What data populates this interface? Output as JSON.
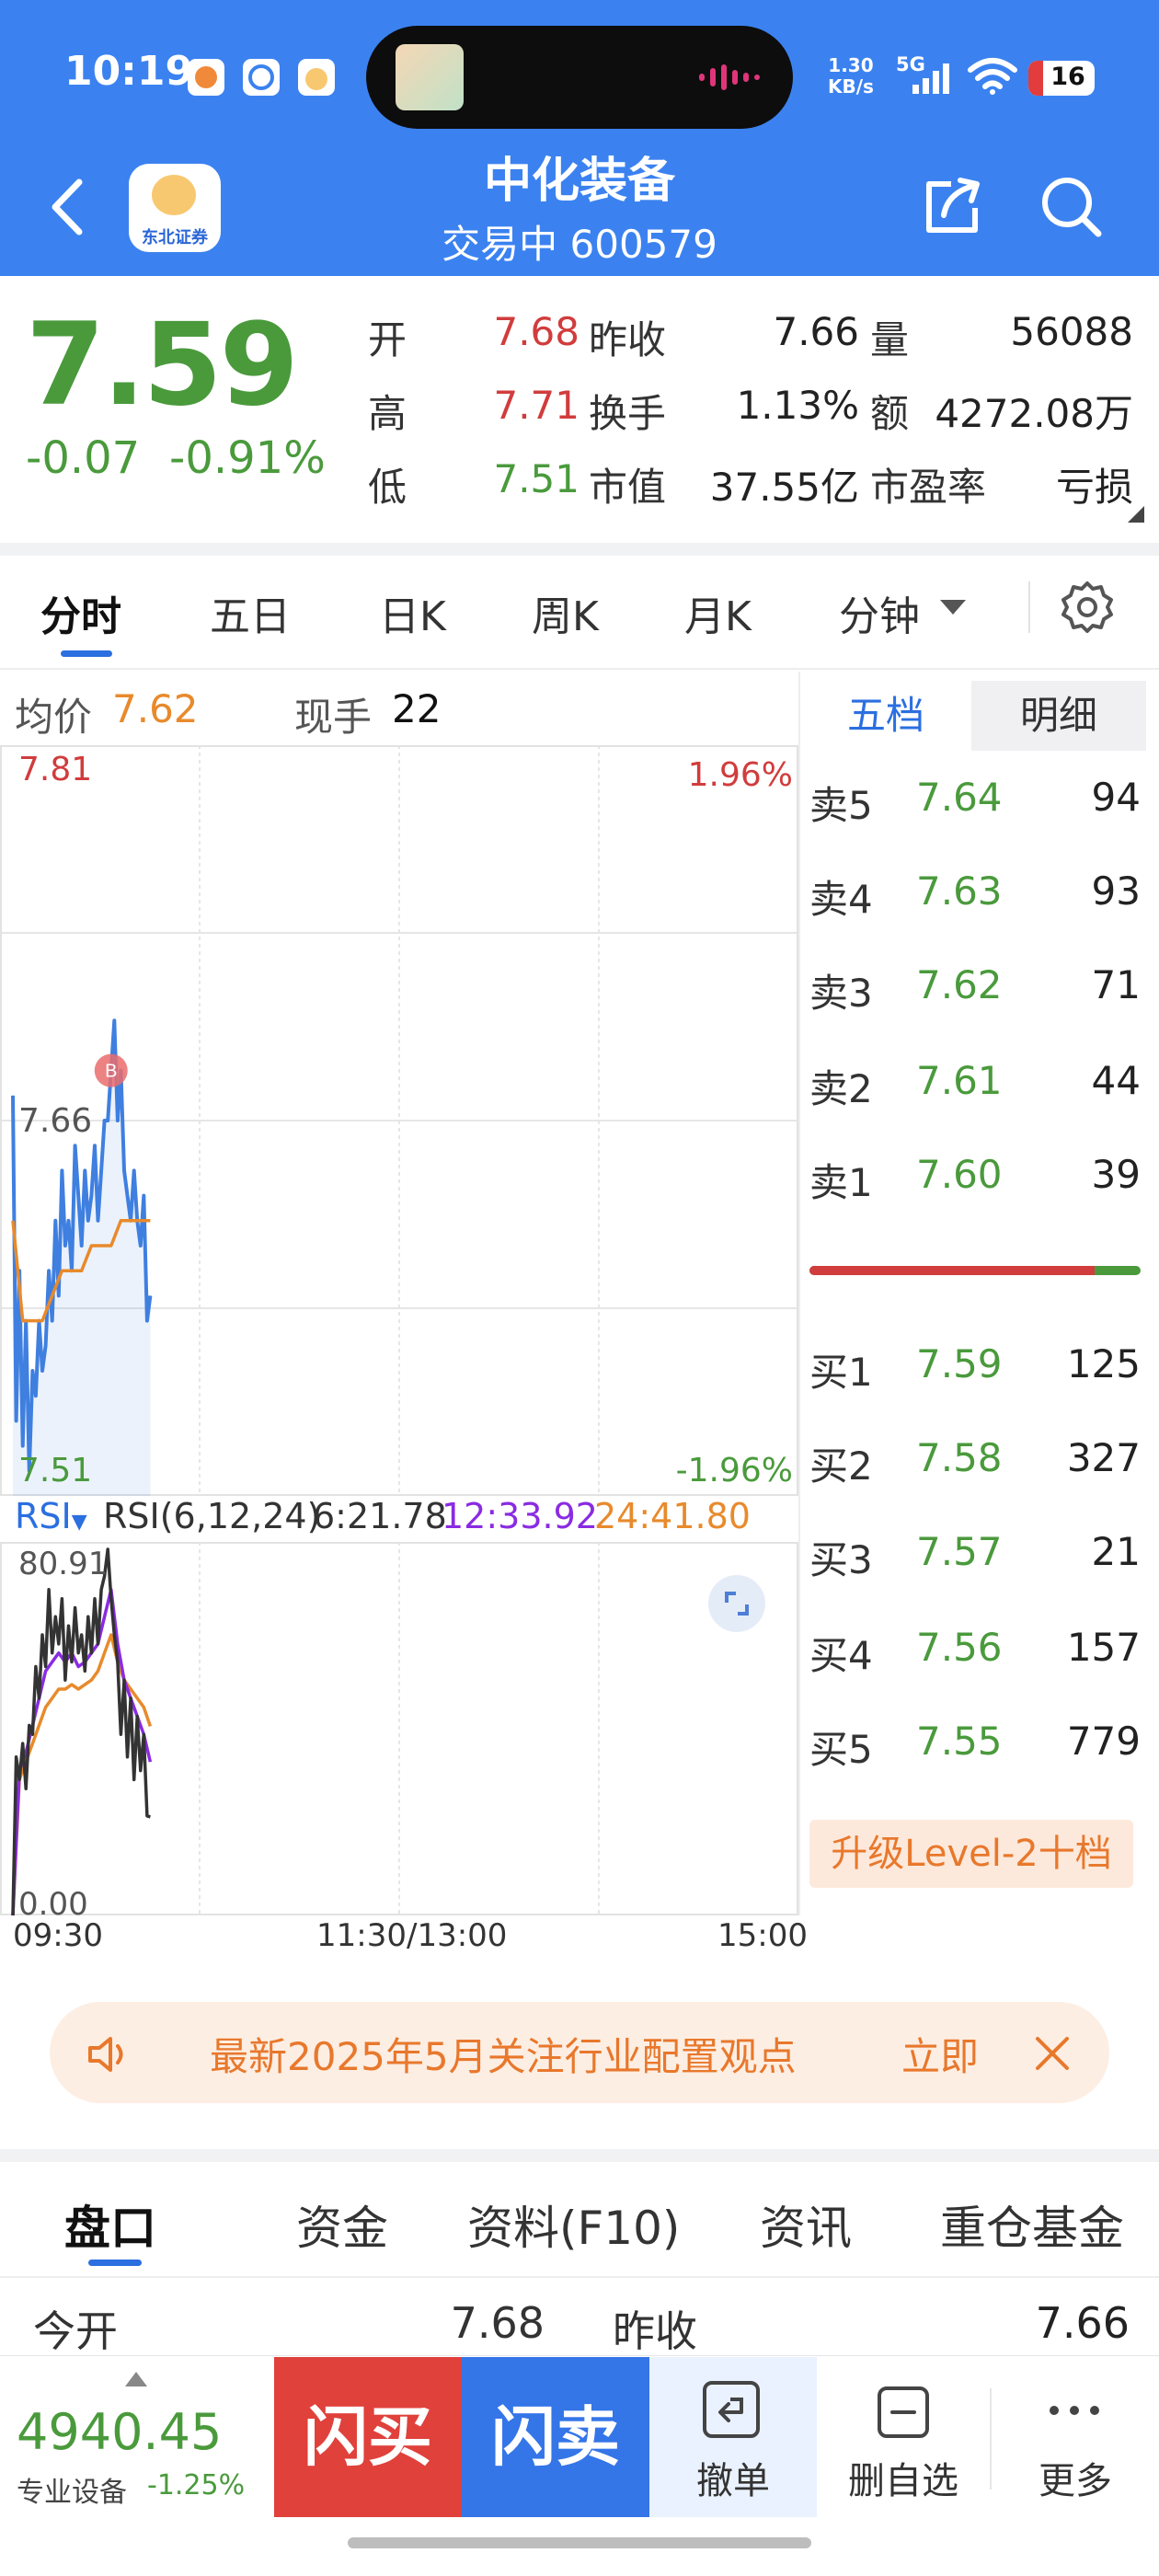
{
  "status_bar": {
    "time": "10:19",
    "speed_value": "1.30",
    "speed_unit": "KB/s",
    "network": "5G",
    "battery": "16"
  },
  "header": {
    "title": "中化装备",
    "subtitle": "交易中 600579",
    "broker_logo": "东北证券",
    "icons": [
      "back-icon",
      "share-icon",
      "search-icon"
    ]
  },
  "quote": {
    "price": "7.59",
    "change": "-0.07",
    "change_pct": "-0.91%",
    "rows": [
      {
        "l1": "开",
        "v1": "7.68",
        "l2": "昨收",
        "v2": "7.66",
        "l3": "量",
        "v3": "56088"
      },
      {
        "l1": "高",
        "v1": "7.71",
        "l2": "换手",
        "v2": "1.13%",
        "l3": "额",
        "v3": "4272.08万"
      },
      {
        "l1": "低",
        "v1": "7.51",
        "l2": "市值",
        "v2": "37.55亿",
        "l3": "市盈率",
        "v3": "亏损"
      }
    ],
    "colors": {
      "up": "#d13c3c",
      "down": "#4a9a3c"
    }
  },
  "period_tabs": [
    "分时",
    "五日",
    "日K",
    "周K",
    "月K",
    "分钟"
  ],
  "chart_info": {
    "avg_label": "均价",
    "avg_value": "7.62",
    "vol_label": "现手",
    "vol_value": "22"
  },
  "order_book_tabs": [
    "五档",
    "明细"
  ],
  "order_book": {
    "asks": [
      {
        "label": "卖5",
        "price": "7.64",
        "vol": "94"
      },
      {
        "label": "卖4",
        "price": "7.63",
        "vol": "93"
      },
      {
        "label": "卖3",
        "price": "7.62",
        "vol": "71"
      },
      {
        "label": "卖2",
        "price": "7.61",
        "vol": "44"
      },
      {
        "label": "卖1",
        "price": "7.60",
        "vol": "39"
      }
    ],
    "bids": [
      {
        "label": "买1",
        "price": "7.59",
        "vol": "125"
      },
      {
        "label": "买2",
        "price": "7.58",
        "vol": "327"
      },
      {
        "label": "买3",
        "price": "7.57",
        "vol": "21"
      },
      {
        "label": "买4",
        "price": "7.56",
        "vol": "157"
      },
      {
        "label": "买5",
        "price": "7.55",
        "vol": "779"
      }
    ],
    "ratio_bar_red_fraction": 0.86,
    "upgrade_label": "升级Level-2十档"
  },
  "chart_data": [
    {
      "type": "line",
      "title": "",
      "price_axis": {
        "top": "7.81",
        "mid": "7.66",
        "bottom": "7.51",
        "top_pct": "1.96%",
        "bottom_pct": "-1.96%"
      },
      "ylim": [
        7.51,
        7.81
      ],
      "x_tick_labels": [
        "09:30",
        "11:30/13:00",
        "15:00"
      ],
      "x_range_minutes": [
        0,
        240
      ],
      "marker": {
        "label": "B",
        "minute": 30,
        "value": 7.68
      },
      "series": [
        {
          "name": "",
          "color": "#3f7fe0",
          "minutes": [
            0,
            1,
            2,
            3,
            4,
            5,
            6,
            7,
            8,
            9,
            10,
            11,
            12,
            13,
            14,
            15,
            16,
            17,
            18,
            19,
            20,
            21,
            22,
            23,
            24,
            25,
            26,
            27,
            28,
            29,
            30,
            31,
            32,
            33,
            34,
            35,
            36,
            37,
            38,
            39,
            40,
            41,
            42
          ],
          "values": [
            7.67,
            7.54,
            7.6,
            7.53,
            7.58,
            7.52,
            7.56,
            7.55,
            7.58,
            7.56,
            7.57,
            7.6,
            7.58,
            7.62,
            7.59,
            7.64,
            7.61,
            7.62,
            7.6,
            7.65,
            7.63,
            7.61,
            7.64,
            7.62,
            7.63,
            7.65,
            7.62,
            7.64,
            7.66,
            7.66,
            7.68,
            7.7,
            7.66,
            7.68,
            7.64,
            7.63,
            7.62,
            7.64,
            7.62,
            7.61,
            7.63,
            7.58,
            7.59
          ]
        },
        {
          "name": "均价",
          "color": "#e88a2c",
          "minutes": [
            0,
            3,
            6,
            9,
            12,
            15,
            18,
            21,
            24,
            27,
            30,
            33,
            36,
            39,
            42
          ],
          "values": [
            7.62,
            7.58,
            7.58,
            7.58,
            7.59,
            7.6,
            7.6,
            7.6,
            7.61,
            7.61,
            7.61,
            7.62,
            7.62,
            7.62,
            7.62
          ]
        }
      ]
    },
    {
      "type": "line",
      "title": "",
      "indicator": "RSI",
      "params": "RSI(6,12,24)",
      "ylim": [
        0.0,
        80.91
      ],
      "y_tick_labels": [
        "80.91",
        "0.00"
      ],
      "legend": [
        {
          "label": "6:21.78",
          "color": "#333333"
        },
        {
          "label": "12:33.92",
          "color": "#8a2be2"
        },
        {
          "label": "24:41.80",
          "color": "#e88a2c"
        }
      ],
      "series": [
        {
          "name": "6",
          "color": "#333333",
          "minutes": [
            0,
            1,
            2,
            3,
            4,
            5,
            6,
            7,
            8,
            9,
            10,
            11,
            12,
            13,
            14,
            15,
            16,
            17,
            18,
            19,
            20,
            21,
            22,
            23,
            24,
            25,
            26,
            27,
            28,
            29,
            30,
            31,
            32,
            33,
            34,
            35,
            36,
            37,
            38,
            39,
            40,
            41,
            42
          ],
          "values": [
            0,
            35,
            30,
            38,
            28,
            42,
            40,
            55,
            48,
            62,
            55,
            72,
            58,
            66,
            60,
            70,
            52,
            64,
            56,
            68,
            58,
            62,
            54,
            66,
            58,
            70,
            60,
            72,
            75,
            80.91,
            70,
            62,
            56,
            40,
            52,
            35,
            48,
            30,
            44,
            32,
            40,
            22,
            21.78
          ]
        },
        {
          "name": "12",
          "color": "#8a2be2",
          "minutes": [
            0,
            2,
            4,
            6,
            8,
            10,
            12,
            14,
            16,
            18,
            20,
            22,
            24,
            26,
            28,
            30,
            32,
            34,
            36,
            38,
            40,
            42
          ],
          "values": [
            0,
            32,
            36,
            42,
            48,
            54,
            56,
            58,
            56,
            58,
            55,
            56,
            58,
            60,
            66,
            72,
            60,
            52,
            48,
            44,
            40,
            33.92
          ]
        },
        {
          "name": "24",
          "color": "#e88a2c",
          "minutes": [
            0,
            2,
            4,
            6,
            8,
            10,
            12,
            14,
            16,
            18,
            20,
            22,
            24,
            26,
            28,
            30,
            32,
            34,
            36,
            38,
            40,
            42
          ],
          "values": [
            0,
            30,
            34,
            38,
            42,
            46,
            48,
            50,
            50,
            51,
            50,
            51,
            52,
            54,
            58,
            62,
            56,
            52,
            50,
            48,
            46,
            41.8
          ]
        }
      ]
    }
  ],
  "banner": {
    "text": "最新2025年5月关注行业配置观点",
    "more": "立即"
  },
  "section_tabs": [
    "盘口",
    "资金",
    "资料(F10)",
    "资讯",
    "重仓基金"
  ],
  "detail_row": {
    "l1": "今开",
    "v1": "7.68",
    "l2": "昨收",
    "v2": "7.66"
  },
  "bottom_bar": {
    "index_value": "4940.45",
    "index_name": "专业设备",
    "index_change": "-1.25%",
    "buy_label": "闪买",
    "sell_label": "闪卖",
    "cancel_label": "撤单",
    "remove_label": "删自选",
    "more_label": "更多"
  }
}
